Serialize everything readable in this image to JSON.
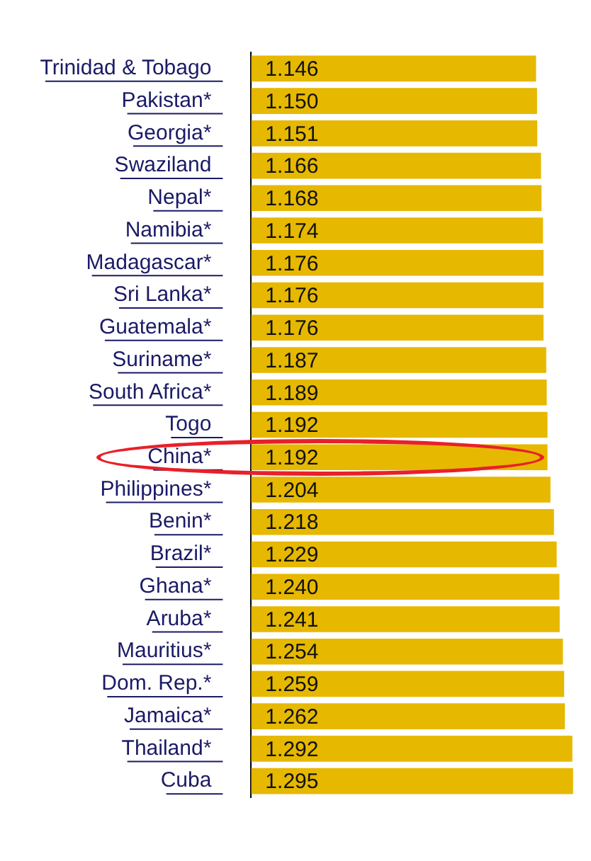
{
  "chart_data": {
    "type": "bar",
    "orientation": "horizontal",
    "categories": [
      "Trinidad & Tobago",
      "Pakistan*",
      "Georgia*",
      "Swaziland",
      "Nepal*",
      "Namibia*",
      "Madagascar*",
      "Sri Lanka*",
      "Guatemala*",
      "Suriname*",
      "South Africa*",
      "Togo",
      "China*",
      "Philippines*",
      "Benin*",
      "Brazil*",
      "Ghana*",
      "Aruba*",
      "Mauritius*",
      "Dom. Rep.*",
      "Jamaica*",
      "Thailand*",
      "Cuba"
    ],
    "values": [
      1.146,
      1.15,
      1.151,
      1.166,
      1.168,
      1.174,
      1.176,
      1.176,
      1.176,
      1.187,
      1.189,
      1.192,
      1.192,
      1.204,
      1.218,
      1.229,
      1.24,
      1.241,
      1.254,
      1.259,
      1.262,
      1.292,
      1.295
    ],
    "value_labels": [
      "1.146",
      "1.150",
      "1.151",
      "1.166",
      "1.168",
      "1.174",
      "1.176",
      "1.176",
      "1.176",
      "1.187",
      "1.189",
      "1.192",
      "1.192",
      "1.204",
      "1.218",
      "1.229",
      "1.240",
      "1.241",
      "1.254",
      "1.259",
      "1.262",
      "1.292",
      "1.295"
    ],
    "color": "#e6b800",
    "xlim": [
      0,
      1.31
    ],
    "tick_labels": "y"
  }
}
